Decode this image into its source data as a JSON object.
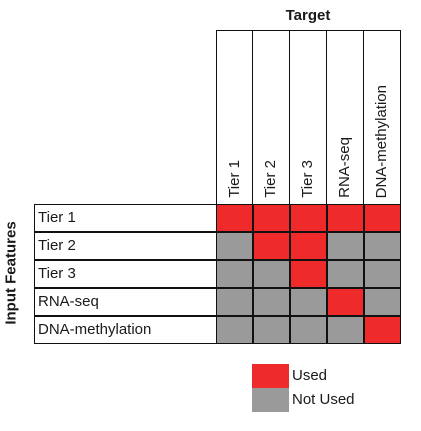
{
  "title_target": "Target",
  "title_input": "Input Features",
  "colors": {
    "used": "#ee2a2a",
    "not_used": "#9a9a9a"
  },
  "columns": [
    "Tier 1",
    "Tier 2",
    "Tier 3",
    "RNA-seq",
    "DNA-methylation"
  ],
  "rows": [
    {
      "label": "Tier 1",
      "cells": [
        1,
        1,
        1,
        1,
        1
      ]
    },
    {
      "label": "Tier 2",
      "cells": [
        0,
        1,
        1,
        0,
        0
      ]
    },
    {
      "label": "Tier 3",
      "cells": [
        0,
        0,
        1,
        0,
        0
      ]
    },
    {
      "label": "RNA-seq",
      "cells": [
        0,
        0,
        0,
        1,
        0
      ]
    },
    {
      "label": "DNA-methylation",
      "cells": [
        0,
        0,
        0,
        0,
        1
      ]
    }
  ],
  "legend": {
    "used": "Used",
    "not_used": "Not Used"
  }
}
